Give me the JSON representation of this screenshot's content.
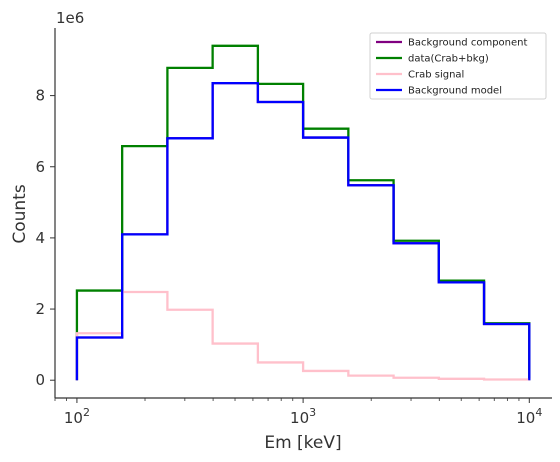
{
  "chart_data": {
    "type": "line",
    "drawstyle": "steps",
    "xscale": "log",
    "xlabel": "Em [keV]",
    "ylabel": "Counts",
    "y_offset_text": "1e6",
    "xlim": [
      80,
      12600
    ],
    "ylim": [
      -0.5,
      9.9
    ],
    "x_ticks": [
      {
        "value": 100,
        "base": "10",
        "exp": "2"
      },
      {
        "value": 1000,
        "base": "10",
        "exp": "3"
      },
      {
        "value": 10000,
        "base": "10",
        "exp": "4"
      }
    ],
    "y_ticks": [
      {
        "value": 0,
        "label": "0"
      },
      {
        "value": 2,
        "label": "2"
      },
      {
        "value": 4,
        "label": "4"
      },
      {
        "value": 6,
        "label": "6"
      },
      {
        "value": 8,
        "label": "8"
      }
    ],
    "bin_edges": [
      100,
      158.5,
      251.2,
      398.1,
      631.0,
      1000,
      1584.9,
      2511.9,
      3981.1,
      6309.6,
      10000
    ],
    "legend_position": "top-right",
    "series": [
      {
        "name": "Background component",
        "color": "#800080",
        "values": [
          1.2,
          4.1,
          6.8,
          8.35,
          7.82,
          6.82,
          5.48,
          3.85,
          2.75,
          1.58
        ]
      },
      {
        "name": "data(Crab+bkg)",
        "color": "#008000",
        "values": [
          2.52,
          6.58,
          8.78,
          9.4,
          8.33,
          7.07,
          5.62,
          3.92,
          2.8,
          1.6
        ]
      },
      {
        "name": "Crab signal",
        "color": "#ffc0cb",
        "values": [
          1.32,
          2.48,
          1.98,
          1.03,
          0.5,
          0.26,
          0.13,
          0.07,
          0.04,
          0.02
        ]
      },
      {
        "name": "Background model",
        "color": "#0000ff",
        "values": [
          1.2,
          4.1,
          6.8,
          8.35,
          7.82,
          6.82,
          5.48,
          3.85,
          2.75,
          1.58
        ]
      }
    ]
  }
}
